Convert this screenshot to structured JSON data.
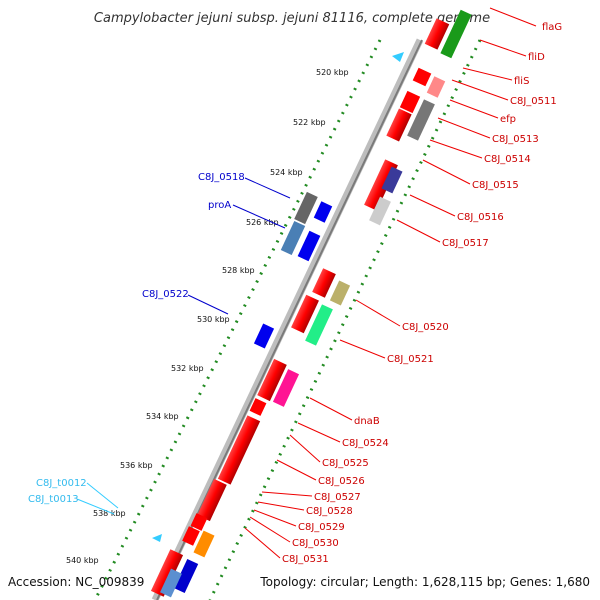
{
  "title": "Campylobacter jejuni subsp. jejuni 81116, complete genome",
  "footer": {
    "accession": "Accession: NC_009839",
    "summary": "Topology: circular; Length: 1,628,115 bp; Genes: 1,680"
  },
  "colors": {
    "cds": "#ff0000",
    "label_fwd": "#cc0000",
    "label_rev": "#0000cc",
    "label_rna": "#33ccff",
    "tick_dots": "#228b22",
    "backbone": "#999999"
  },
  "ticks": [
    "520 kbp",
    "522 kbp",
    "524 kbp",
    "526 kbp",
    "528 kbp",
    "530 kbp",
    "532 kbp",
    "534 kbp",
    "536 kbp",
    "538 kbp",
    "540 kbp"
  ],
  "labels_right": [
    "flaG",
    "fliD",
    "fliS",
    "C8J_0511",
    "efp",
    "C8J_0513",
    "C8J_0514",
    "C8J_0515",
    "C8J_0516",
    "C8J_0517",
    "C8J_0520",
    "C8J_0521",
    "dnaB",
    "C8J_0524",
    "C8J_0525",
    "C8J_0526",
    "C8J_0527",
    "C8J_0528",
    "C8J_0529",
    "C8J_0530",
    "C8J_0531"
  ],
  "labels_left_blue": [
    "C8J_0518",
    "proA",
    "C8J_0522"
  ],
  "labels_left_cyan": [
    "C8J_t0012",
    "C8J_t0013"
  ]
}
